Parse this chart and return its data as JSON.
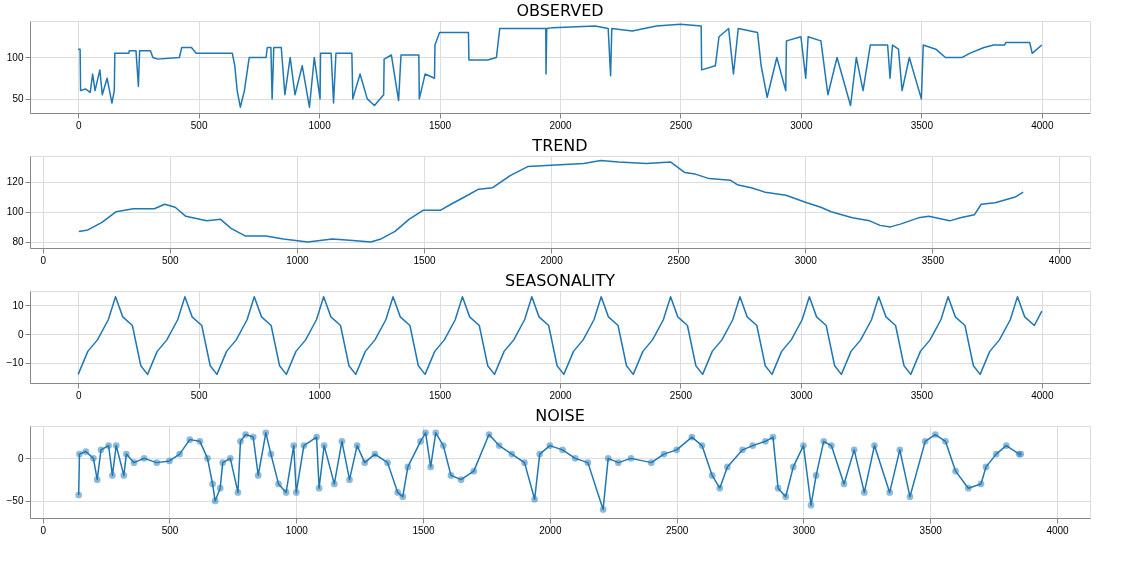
{
  "chart_data": [
    {
      "type": "line",
      "title": "OBSERVED",
      "xlim": [
        -200,
        4200
      ],
      "xticks": [
        0,
        500,
        1000,
        1500,
        2000,
        2500,
        3000,
        3500,
        4000
      ],
      "ylim": [
        33,
        144
      ],
      "yticks": [
        50,
        100
      ],
      "grid": true,
      "marker": "none",
      "series": [
        {
          "color": "#1f77b4",
          "x": [
            0,
            8,
            10,
            30,
            50,
            60,
            70,
            90,
            100,
            120,
            140,
            150,
            152,
            210,
            212,
            240,
            250,
            255,
            300,
            310,
            330,
            420,
            430,
            470,
            490,
            640,
            650,
            660,
            673,
            690,
            710,
            780,
            785,
            800,
            805,
            812,
            843,
            858,
            880,
            900,
            930,
            960,
            980,
            1004,
            1006,
            1050,
            1060,
            1070,
            1136,
            1140,
            1170,
            1200,
            1230,
            1268,
            1270,
            1300,
            1330,
            1340,
            1414,
            1416,
            1440,
            1479,
            1481,
            1500,
            1532,
            1620,
            1622,
            1700,
            1736,
            1750,
            1900,
            1941,
            1942,
            1945,
            1970,
            2146,
            2200,
            2210,
            2215,
            2300,
            2400,
            2500,
            2586,
            2588,
            2645,
            2660,
            2700,
            2720,
            2740,
            2820,
            2835,
            2860,
            2900,
            2937,
            2940,
            3000,
            3020,
            3030,
            3083,
            3112,
            3150,
            3206,
            3230,
            3258,
            3288,
            3360,
            3370,
            3380,
            3405,
            3420,
            3450,
            3500,
            3508,
            3560,
            3600,
            3670,
            3700,
            3760,
            3800,
            3846,
            3850,
            3950,
            3960,
            4000
          ],
          "values": [
            110,
            110,
            60,
            62,
            58,
            80,
            60,
            85,
            55,
            75,
            45,
            60,
            105,
            105,
            108,
            108,
            65,
            108,
            108,
            100,
            98,
            100,
            112,
            112,
            105,
            105,
            90,
            60,
            40,
            60,
            100,
            100,
            112,
            112,
            50,
            112,
            112,
            55,
            100,
            55,
            90,
            40,
            100,
            50,
            105,
            105,
            45,
            105,
            105,
            50,
            80,
            50,
            42,
            55,
            98,
            103,
            48,
            103,
            103,
            50,
            80,
            75,
            115,
            130,
            130,
            130,
            97,
            97,
            100,
            135,
            135,
            135,
            80,
            135,
            136,
            138,
            135,
            78,
            135,
            132,
            138,
            140,
            138,
            85,
            90,
            125,
            135,
            80,
            135,
            130,
            90,
            52,
            100,
            60,
            120,
            125,
            75,
            125,
            120,
            55,
            100,
            42,
            100,
            60,
            115,
            115,
            75,
            115,
            110,
            60,
            100,
            50,
            115,
            110,
            100,
            100,
            105,
            112,
            115,
            115,
            118,
            118,
            105,
            115
          ]
        }
      ]
    },
    {
      "type": "line",
      "title": "TREND",
      "xlim": [
        -50,
        4120
      ],
      "xticks": [
        0,
        500,
        1000,
        1500,
        2000,
        2500,
        3000,
        3500,
        4000
      ],
      "ylim": [
        76,
        137
      ],
      "yticks": [
        80,
        100,
        120
      ],
      "grid": true,
      "marker": "none",
      "series": [
        {
          "color": "#1f77b4",
          "x": [
            142,
            178,
            233,
            288,
            357,
            439,
            480,
            521,
            563,
            645,
            700,
            741,
            796,
            878,
            947,
            1043,
            1139,
            1221,
            1290,
            1331,
            1386,
            1441,
            1496,
            1564,
            1606,
            1661,
            1715,
            1770,
            1839,
            1908,
            2018,
            2128,
            2196,
            2265,
            2375,
            2471,
            2526,
            2567,
            2622,
            2705,
            2732,
            2787,
            2842,
            2924,
            3006,
            3061,
            3102,
            3185,
            3253,
            3294,
            3335,
            3377,
            3445,
            3486,
            3568,
            3610,
            3665,
            3692,
            3747,
            3829,
            3857
          ],
          "values": [
            87,
            88,
            93,
            100,
            102,
            102,
            105,
            103,
            97,
            94,
            95,
            89,
            84,
            84,
            82,
            80,
            82,
            81,
            80,
            82,
            87,
            95,
            101,
            101,
            105,
            110,
            115,
            116,
            124,
            130,
            131,
            132,
            134,
            133,
            132,
            133,
            126,
            125,
            122,
            121,
            118,
            116,
            113,
            111,
            106,
            103,
            100,
            96,
            94,
            91,
            90,
            92,
            96,
            97,
            94,
            96,
            98,
            105,
            106,
            110,
            113
          ]
        }
      ]
    },
    {
      "type": "line",
      "title": "SEASONALITY",
      "xlim": [
        -200,
        4200
      ],
      "xticks": [
        0,
        500,
        1000,
        1500,
        2000,
        2500,
        3000,
        3500,
        4000
      ],
      "ylim": [
        -17,
        15
      ],
      "yticks": [
        -10,
        0,
        10
      ],
      "grid": true,
      "marker": "none",
      "series": [
        {
          "color": "#1f77b4",
          "x": [
            0,
            40,
            80,
            125,
            155,
            185,
            225,
            260,
            288,
            328,
            368,
            413,
            443,
            473,
            513,
            548,
            576,
            616,
            656,
            701,
            731,
            761,
            801,
            836,
            864,
            904,
            944,
            989,
            1019,
            1049,
            1089,
            1124,
            1152,
            1192,
            1232,
            1277,
            1307,
            1337,
            1377,
            1412,
            1440,
            1480,
            1520,
            1565,
            1595,
            1625,
            1665,
            1700,
            1728,
            1768,
            1808,
            1853,
            1883,
            1913,
            1953,
            1988,
            2016,
            2056,
            2096,
            2141,
            2171,
            2201,
            2241,
            2276,
            2304,
            2344,
            2384,
            2429,
            2459,
            2489,
            2529,
            2564,
            2592,
            2632,
            2672,
            2717,
            2747,
            2777,
            2817,
            2852,
            2880,
            2920,
            2960,
            3005,
            3035,
            3065,
            3105,
            3140,
            3168,
            3208,
            3248,
            3293,
            3323,
            3353,
            3393,
            3428,
            3456,
            3496,
            3536,
            3581,
            3611,
            3641,
            3681,
            3716,
            3744,
            3784,
            3824,
            3869,
            3899,
            3929,
            3969,
            4000
          ],
          "values": [
            -14,
            -6,
            -2,
            5,
            13,
            6,
            3,
            -11,
            -14,
            -6,
            -2,
            5,
            13,
            6,
            3,
            -11,
            -14,
            -6,
            -2,
            5,
            13,
            6,
            3,
            -11,
            -14,
            -6,
            -2,
            5,
            13,
            6,
            3,
            -11,
            -14,
            -6,
            -2,
            5,
            13,
            6,
            3,
            -11,
            -14,
            -6,
            -2,
            5,
            13,
            6,
            3,
            -11,
            -14,
            -6,
            -2,
            5,
            13,
            6,
            3,
            -11,
            -14,
            -6,
            -2,
            5,
            13,
            6,
            3,
            -11,
            -14,
            -6,
            -2,
            5,
            13,
            6,
            3,
            -11,
            -14,
            -6,
            -2,
            5,
            13,
            6,
            3,
            -11,
            -14,
            -6,
            -2,
            5,
            13,
            6,
            3,
            -11,
            -14,
            -6,
            -2,
            5,
            13,
            6,
            3,
            -11,
            -14,
            -6,
            -2,
            5,
            13,
            6,
            3,
            -11,
            -14,
            -6,
            -2,
            5,
            13,
            6,
            3,
            8
          ]
        }
      ]
    },
    {
      "type": "line",
      "title": "NOISE",
      "xlim": [
        -50,
        4130
      ],
      "xticks": [
        0,
        500,
        1000,
        1500,
        2000,
        2500,
        3000,
        3500,
        4000
      ],
      "ylim": [
        -70,
        38
      ],
      "yticks": [
        -50,
        0
      ],
      "grid": true,
      "marker": "circle",
      "series": [
        {
          "color": "#1f77b4",
          "x": [
            142,
            145,
            170,
            200,
            215,
            230,
            260,
            275,
            290,
            320,
            330,
            360,
            400,
            450,
            500,
            540,
            580,
            620,
            650,
            670,
            680,
            700,
            710,
            740,
            770,
            780,
            800,
            830,
            850,
            880,
            900,
            930,
            960,
            990,
            1000,
            1030,
            1080,
            1090,
            1110,
            1150,
            1180,
            1210,
            1240,
            1270,
            1310,
            1360,
            1400,
            1420,
            1440,
            1490,
            1510,
            1530,
            1550,
            1580,
            1610,
            1650,
            1700,
            1760,
            1800,
            1850,
            1900,
            1940,
            1960,
            2000,
            2050,
            2100,
            2150,
            2210,
            2230,
            2270,
            2320,
            2400,
            2450,
            2500,
            2560,
            2600,
            2640,
            2670,
            2700,
            2760,
            2800,
            2850,
            2880,
            2900,
            2930,
            2960,
            3000,
            3030,
            3050,
            3080,
            3110,
            3160,
            3200,
            3240,
            3280,
            3340,
            3380,
            3420,
            3480,
            3520,
            3560,
            3600,
            3650,
            3700,
            3720,
            3760,
            3800,
            3850,
            3857
          ],
          "values": [
            -43,
            5,
            8,
            0,
            -25,
            10,
            15,
            -20,
            15,
            -20,
            5,
            -5,
            0,
            -5,
            -3,
            5,
            22,
            20,
            0,
            -30,
            -50,
            -35,
            -5,
            0,
            -40,
            20,
            28,
            25,
            -20,
            30,
            5,
            -30,
            -40,
            15,
            -40,
            15,
            25,
            -35,
            15,
            -30,
            20,
            -25,
            15,
            -5,
            5,
            -5,
            -40,
            -45,
            -10,
            20,
            30,
            -10,
            30,
            15,
            -20,
            -25,
            -15,
            28,
            15,
            5,
            -5,
            -48,
            5,
            15,
            10,
            0,
            -5,
            -60,
            0,
            -5,
            0,
            -5,
            5,
            10,
            25,
            15,
            -20,
            -35,
            -10,
            10,
            15,
            20,
            25,
            -35,
            -45,
            -10,
            15,
            -55,
            -20,
            20,
            15,
            -30,
            10,
            -40,
            15,
            -40,
            10,
            -45,
            20,
            28,
            20,
            -15,
            -35,
            -30,
            -10,
            5,
            15,
            5,
            5
          ]
        }
      ]
    }
  ]
}
